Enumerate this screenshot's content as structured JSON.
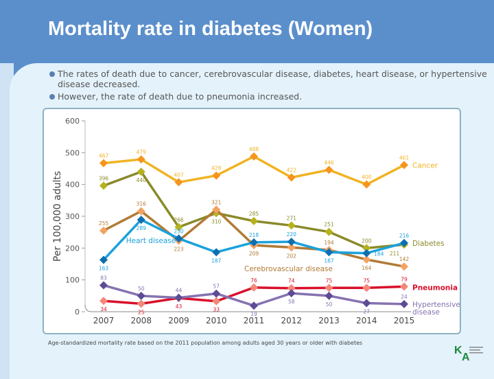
{
  "title": "Mortality rate in diabetes (Women)",
  "bullets": [
    "The rates of death due to cancer, cerebrovascular disease, diabetes, heart disease, or hypertensive disease decreased.",
    "However, the rate of death due to pneumonia increased."
  ],
  "footnote": "Age-standardized mortality rate based on the 2011 population among adults aged 30 years or older with diabetes",
  "logo_text": "KDA Korean Diabetes Association",
  "chart_data": {
    "type": "line",
    "ylabel": "Per 100,000 adults",
    "xlabel": "",
    "ylim": [
      0,
      600
    ],
    "yticks": [
      "0",
      "100",
      "200",
      "300",
      "400",
      "500",
      "600"
    ],
    "categories": [
      "2007",
      "2008",
      "2009",
      "2010",
      "2011",
      "2012",
      "2013",
      "2014",
      "2015"
    ],
    "grid": false,
    "series": [
      {
        "name": "Cancer",
        "color": "#f0b323",
        "marker": "#f7941d",
        "values": [
          467,
          479,
          407,
          428,
          488,
          422,
          446,
          400,
          461
        ]
      },
      {
        "name": "Diabetes",
        "color": "#8a8a2a",
        "marker": "#b5b21e",
        "values": [
          396,
          440,
          266,
          310,
          285,
          271,
          251,
          200,
          211
        ]
      },
      {
        "name": "Cerebrovascular disease",
        "color": "#b07a35",
        "marker": "#f4a261",
        "values": [
          255,
          316,
          223,
          321,
          209,
          202,
          194,
          164,
          142
        ]
      },
      {
        "name": "Heart disease",
        "color": "#1ba1dc",
        "marker": "#0e6fb0",
        "values": [
          163,
          289,
          230,
          187,
          218,
          220,
          187,
          184,
          216
        ]
      },
      {
        "name": "Pneumonia",
        "color": "#d9102a",
        "marker": "#f4877a",
        "values": [
          34,
          25,
          43,
          33,
          76,
          74,
          75,
          75,
          79
        ]
      },
      {
        "name": "Hypertensive disease",
        "color": "#8672b0",
        "marker": "#5e4b96",
        "values": [
          83,
          50,
          44,
          57,
          19,
          58,
          50,
          27,
          24
        ]
      }
    ]
  }
}
